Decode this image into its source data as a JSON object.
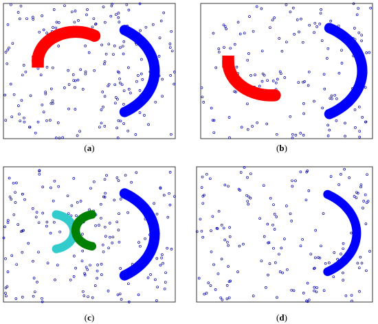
{
  "chart_data": [
    {
      "type": "scatter",
      "panel_label": "a",
      "xlim": [
        0,
        100
      ],
      "ylim": [
        0,
        100
      ],
      "grid": false,
      "noise_points": 190,
      "series": [
        {
          "color": "#ff0000",
          "shape": "arc",
          "cx": 42,
          "cy": 57,
          "r": 22,
          "thickness": 7,
          "start_deg": 60,
          "end_deg": 180,
          "square_end": "end"
        },
        {
          "color": "#0000ff",
          "shape": "arc",
          "cx": 53,
          "cy": 50,
          "r": 35,
          "thickness": 6,
          "start_deg": -60,
          "end_deg": 60
        }
      ]
    },
    {
      "type": "scatter",
      "panel_label": "b",
      "xlim": [
        0,
        100
      ],
      "ylim": [
        0,
        100
      ],
      "grid": false,
      "noise_points": 150,
      "series": [
        {
          "color": "#ff0000",
          "shape": "arc",
          "cx": 41,
          "cy": 57,
          "r": 25,
          "thickness": 7,
          "start_deg": 180,
          "end_deg": 275,
          "square_end": "start"
        },
        {
          "color": "#0000ff",
          "shape": "arc",
          "cx": 58,
          "cy": 50,
          "r": 36,
          "thickness": 6,
          "start_deg": -62,
          "end_deg": 62
        }
      ]
    },
    {
      "type": "scatter",
      "panel_label": "c",
      "xlim": [
        0,
        100
      ],
      "ylim": [
        0,
        100
      ],
      "grid": false,
      "noise_points": 170,
      "series": [
        {
          "color": "#33cccc",
          "shape": "arc",
          "cx": 28,
          "cy": 52,
          "r": 13,
          "thickness": 5,
          "start_deg": -78,
          "end_deg": 78
        },
        {
          "color": "#008000",
          "shape": "arc",
          "cx": 54,
          "cy": 53,
          "r": 12,
          "thickness": 5,
          "start_deg": 102,
          "end_deg": 258
        },
        {
          "color": "#0000ff",
          "shape": "arc",
          "cx": 53,
          "cy": 50,
          "r": 35,
          "thickness": 6,
          "start_deg": -60,
          "end_deg": 60
        }
      ]
    },
    {
      "type": "scatter",
      "panel_label": "d",
      "xlim": [
        0,
        100
      ],
      "ylim": [
        0,
        100
      ],
      "grid": false,
      "noise_points": 160,
      "series": [
        {
          "color": "#0000ff",
          "shape": "arc",
          "cx": 58,
          "cy": 51,
          "r": 33,
          "thickness": 5,
          "start_deg": -60,
          "end_deg": 60
        }
      ]
    }
  ]
}
